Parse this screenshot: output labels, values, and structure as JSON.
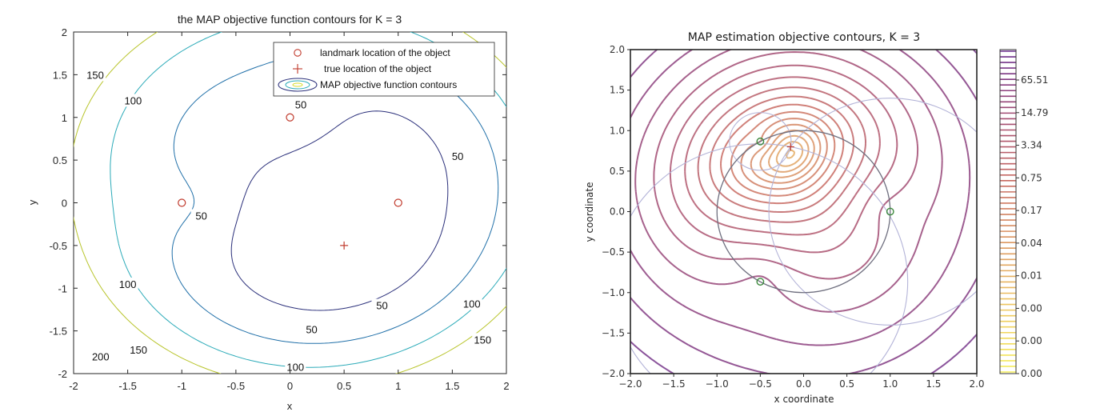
{
  "chart_data": [
    {
      "type": "contour",
      "title": "the MAP objective function contours for K = 3",
      "xlabel": "x",
      "ylabel": "y",
      "xlim": [
        -2,
        2
      ],
      "ylim": [
        -2,
        2
      ],
      "xticks": [
        "-2",
        "-1.5",
        "-1",
        "-0.5",
        "0",
        "0.5",
        "1",
        "1.5",
        "2"
      ],
      "yticks": [
        "2",
        "1.5",
        "1",
        "0.5",
        "0",
        "-0.5",
        "-1",
        "-1.5",
        "-2"
      ],
      "contour_levels": [
        50,
        100,
        150,
        200
      ],
      "contour_colors": [
        "#2a2f7a",
        "#1f6fa8",
        "#2aaab8",
        "#b8c42a"
      ],
      "legend": {
        "position": "top-right",
        "entries": [
          "landmark location of the object",
          "true location of the object",
          "MAP objective function contours"
        ]
      },
      "landmarks": [
        {
          "x": 0,
          "y": 1
        },
        {
          "x": -1,
          "y": 0
        },
        {
          "x": 1,
          "y": 0
        }
      ],
      "true_location": {
        "x": 0.5,
        "y": -0.5
      },
      "contour_labels": [
        {
          "text": "150",
          "x": -1.8,
          "y": 1.5
        },
        {
          "text": "100",
          "x": -1.45,
          "y": 1.2
        },
        {
          "text": "50",
          "x": 0.1,
          "y": 1.15
        },
        {
          "text": "50",
          "x": 1.55,
          "y": 0.55
        },
        {
          "text": "50",
          "x": -0.82,
          "y": -0.15
        },
        {
          "text": "100",
          "x": -1.5,
          "y": -0.95
        },
        {
          "text": "50",
          "x": 0.85,
          "y": -1.2
        },
        {
          "text": "100",
          "x": 1.68,
          "y": -1.18
        },
        {
          "text": "50",
          "x": 0.2,
          "y": -1.48
        },
        {
          "text": "150",
          "x": -1.4,
          "y": -1.72
        },
        {
          "text": "150",
          "x": 1.78,
          "y": -1.6
        },
        {
          "text": "200",
          "x": -1.75,
          "y": -1.8
        },
        {
          "text": "100",
          "x": 0.05,
          "y": -1.92
        }
      ]
    },
    {
      "type": "contour",
      "title": "MAP estimation objective contours, K = 3",
      "xlabel": "x coordinate",
      "ylabel": "y coordinate",
      "xlim": [
        -2.0,
        2.0
      ],
      "ylim": [
        -2.0,
        2.0
      ],
      "xticks": [
        "−2.0",
        "−1.5",
        "−1.0",
        "−0.5",
        "0.0",
        "0.5",
        "1.0",
        "1.5",
        "2.0"
      ],
      "yticks": [
        "2.0",
        "1.5",
        "1.0",
        "0.5",
        "0.0",
        "−0.5",
        "−1.0",
        "−1.5",
        "−2.0"
      ],
      "colorbar_ticks": [
        "65.51",
        "14.79",
        "3.34",
        "0.75",
        "0.17",
        "0.04",
        "0.01",
        "0.00",
        "0.00",
        "0.00"
      ],
      "colormap": [
        "#f5ef5a",
        "#eec760",
        "#dd9a62",
        "#c86a62",
        "#a24b72",
        "#6b2f8f"
      ],
      "landmarks": [
        {
          "x": -0.5,
          "y": 0.866
        },
        {
          "x": 1.0,
          "y": 0.0
        },
        {
          "x": -0.5,
          "y": -0.866
        }
      ],
      "true_location": {
        "x": -0.15,
        "y": 0.8
      }
    }
  ]
}
